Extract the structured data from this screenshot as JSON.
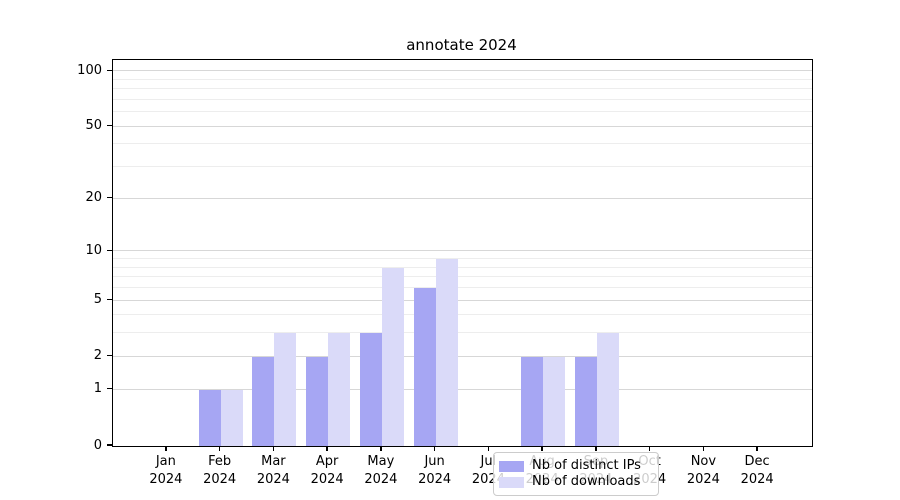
{
  "chart_data": {
    "type": "bar",
    "title": "annotate 2024",
    "categories": [
      "Jan 2024",
      "Feb 2024",
      "Mar 2024",
      "Apr 2024",
      "May 2024",
      "Jun 2024",
      "Jul 2024",
      "Aug 2024",
      "Sep 2024",
      "Oct 2024",
      "Nov 2024",
      "Dec 2024"
    ],
    "series": [
      {
        "name": "Nb of distinct IPs",
        "color": "#a6a6f3",
        "values": [
          0,
          1,
          2,
          2,
          3,
          6,
          0,
          2,
          2,
          0,
          0,
          0
        ]
      },
      {
        "name": "Nb of downloads",
        "color": "#dadaf9",
        "values": [
          0,
          1,
          3,
          3,
          8,
          9,
          0,
          2,
          3,
          0,
          0,
          0
        ]
      }
    ],
    "xlabel": "",
    "ylabel": "",
    "yscale": "log1p",
    "ylim": [
      0,
      115
    ],
    "yticks": [
      0,
      1,
      2,
      5,
      10,
      20,
      50,
      100
    ],
    "grid": {
      "major_lines": [
        1,
        2,
        5,
        10,
        20,
        50,
        100
      ],
      "minor_lines": [
        3,
        4,
        6,
        7,
        8,
        9,
        30,
        40,
        60,
        70,
        80,
        90
      ],
      "major_color": "#d7d7d7",
      "minor_color": "#ededed"
    },
    "legend": {
      "position": "lower-center-inside"
    }
  }
}
